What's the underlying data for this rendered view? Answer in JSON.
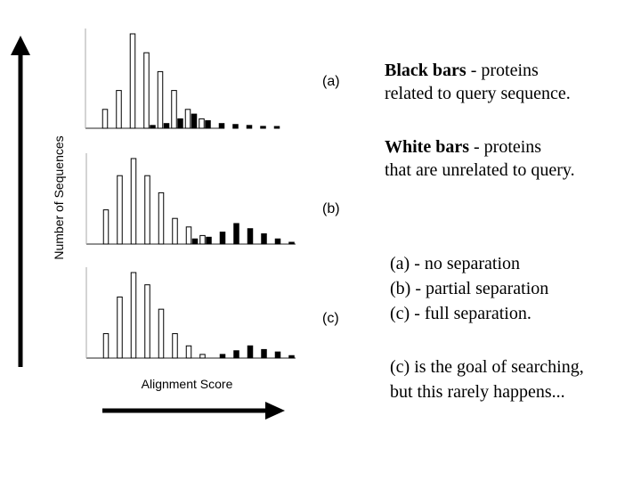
{
  "chart_data": {
    "type": "bar",
    "y_axis_label": "Number of Sequences",
    "x_axis_label": "Alignment Score",
    "series_colors": {
      "unrelated": "#ffffff",
      "related": "#000000"
    },
    "panels": [
      {
        "label": "(a)",
        "unrelated": [
          0,
          2,
          4,
          10,
          8,
          6,
          4,
          2,
          1,
          0,
          0,
          0,
          0,
          0,
          0
        ],
        "related": [
          0,
          0,
          0,
          0,
          0.3,
          0.5,
          1,
          1.5,
          0.8,
          0.5,
          0.4,
          0.3,
          0.2,
          0.1,
          0
        ]
      },
      {
        "label": "(b)",
        "unrelated": [
          0,
          2,
          4,
          5,
          4,
          3,
          1.5,
          1,
          0.5,
          0,
          0,
          0,
          0,
          0,
          0
        ],
        "related": [
          0,
          0,
          0,
          0,
          0,
          0,
          0,
          0.3,
          0.4,
          0.7,
          1.2,
          0.9,
          0.6,
          0.3,
          0.1
        ]
      },
      {
        "label": "(c)",
        "unrelated": [
          0,
          2,
          5,
          7,
          6,
          4,
          2,
          1,
          0.3,
          0,
          0,
          0,
          0,
          0,
          0
        ],
        "related": [
          0,
          0,
          0,
          0,
          0,
          0,
          0,
          0,
          0,
          0.3,
          0.6,
          1.0,
          0.7,
          0.5,
          0.2
        ]
      }
    ]
  },
  "notes": {
    "black_bars_bold": "Black bars",
    "black_bars_rest": " - proteins",
    "black_bars_line2": "related to query sequence.",
    "white_bars_bold": "White bars",
    "white_bars_rest": " - proteins",
    "white_bars_line2": "that are unrelated to query.",
    "legend_a": "(a) - no separation",
    "legend_b": "(b) - partial separation",
    "legend_c": "(c) - full separation.",
    "goal_line1": "(c) is the goal of searching,",
    "goal_line2": "but this rarely happens..."
  }
}
